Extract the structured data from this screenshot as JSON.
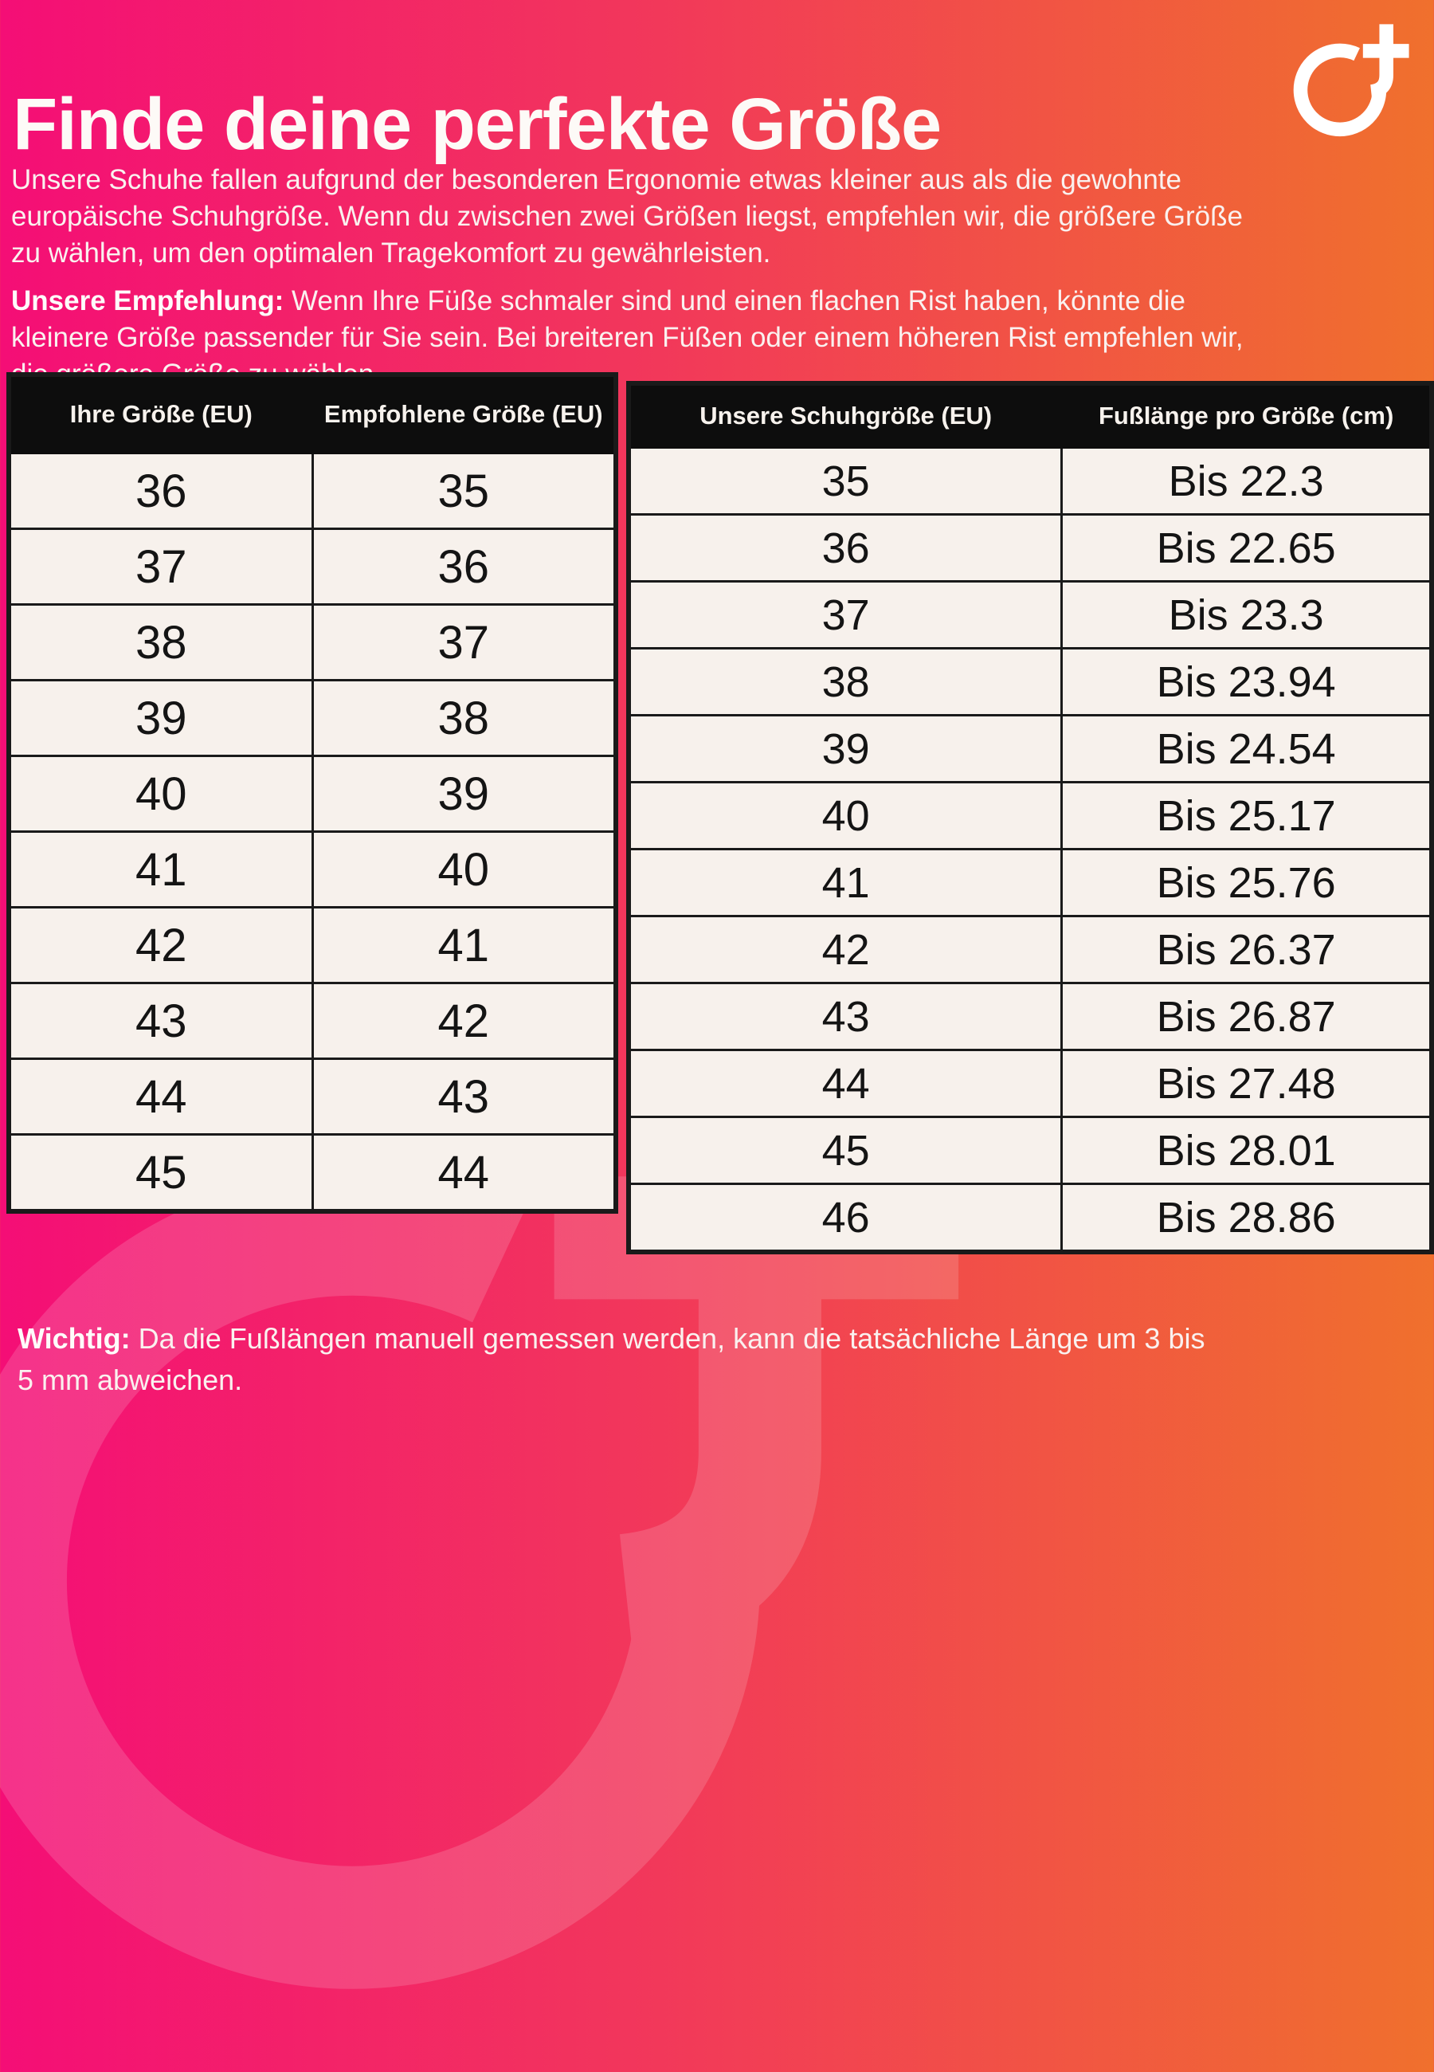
{
  "page": {
    "title": "Finde deine perfekte Größe",
    "intro": "Unsere Schuhe fallen aufgrund der besonderen Ergonomie etwas kleiner aus als die gewohnte europäische Schuhgröße. Wenn du zwischen zwei Größen liegst, empfehlen wir, die größere Größe zu wählen, um den optimalen Tragekomfort zu gewährleisten.",
    "recommendation_label": "Unsere Empfehlung:",
    "recommendation_text": " Wenn Ihre Füße schmaler sind und einen flachen Rist haben, könnte die kleinere Größe passender für Sie sein. Bei breiteren Füßen oder einem höheren Rist empfehlen wir, die größere Größe zu wählen.",
    "note_label": "Wichtig:",
    "note_text": " Da die Fußlängen manuell gemessen werden, kann die tatsächliche Länge um 3 bis 5 mm abweichen."
  },
  "logo": {
    "name": "circle-plus-logo",
    "color": "#FFFFFF"
  },
  "colors": {
    "gradient_left": "#F40E76",
    "gradient_right": "#F0702D",
    "table_header_bg": "#0D0D0D",
    "table_header_text": "#F7F2ED",
    "cell_bg": "#F7F1EC",
    "cell_text": "#141414",
    "border": "#1A1A1A",
    "body_text": "#FAF1EF"
  },
  "tables": {
    "size_conversion": {
      "headers": [
        "Ihre Größe (EU)",
        "Empfohlene Größe (EU)"
      ],
      "rows": [
        [
          "36",
          "35"
        ],
        [
          "37",
          "36"
        ],
        [
          "38",
          "37"
        ],
        [
          "39",
          "38"
        ],
        [
          "40",
          "39"
        ],
        [
          "41",
          "40"
        ],
        [
          "42",
          "41"
        ],
        [
          "43",
          "42"
        ],
        [
          "44",
          "43"
        ],
        [
          "45",
          "44"
        ]
      ]
    },
    "foot_length": {
      "headers": [
        "Unsere Schuhgröße (EU)",
        "Fußlänge pro Größe (cm)"
      ],
      "rows": [
        [
          "35",
          "Bis 22.3"
        ],
        [
          "36",
          "Bis 22.65"
        ],
        [
          "37",
          "Bis 23.3"
        ],
        [
          "38",
          "Bis 23.94"
        ],
        [
          "39",
          "Bis 24.54"
        ],
        [
          "40",
          "Bis 25.17"
        ],
        [
          "41",
          "Bis 25.76"
        ],
        [
          "42",
          "Bis 26.37"
        ],
        [
          "43",
          "Bis 26.87"
        ],
        [
          "44",
          "Bis 27.48"
        ],
        [
          "45",
          "Bis 28.01"
        ],
        [
          "46",
          "Bis 28.86"
        ]
      ]
    }
  }
}
